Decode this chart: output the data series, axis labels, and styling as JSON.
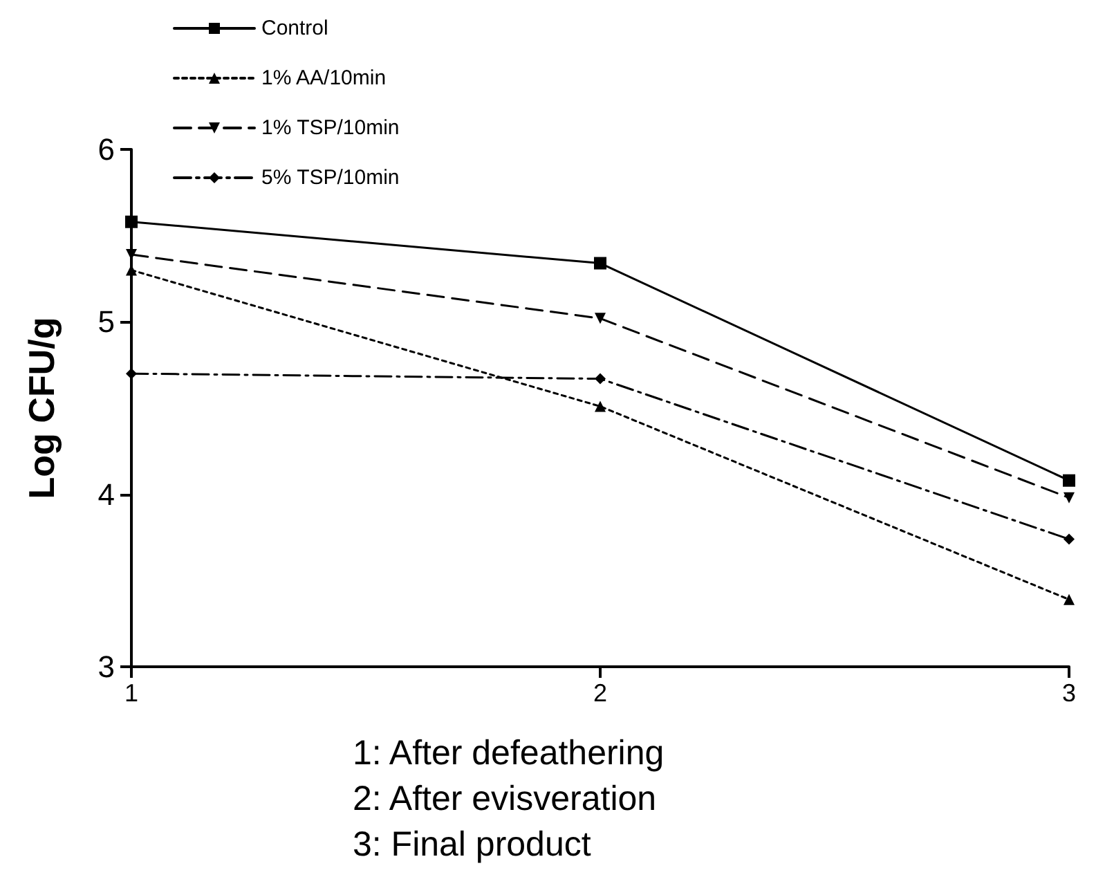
{
  "chart_data": {
    "type": "line",
    "ylabel": "Log CFU/g",
    "x": [
      1,
      2,
      3
    ],
    "xlim": [
      1,
      3
    ],
    "xticks": [
      1,
      2,
      3
    ],
    "ylim": [
      3,
      6
    ],
    "yticks": [
      3,
      4,
      5,
      6
    ],
    "grid": false,
    "legend": "top left",
    "annotations": [
      "1: After defeathering",
      "2: After evisveration",
      "3: Final product"
    ],
    "series": [
      {
        "name": "Control",
        "color": "#000000",
        "marker": "square",
        "line_style": "solid",
        "values": [
          5.58,
          5.34,
          4.08
        ]
      },
      {
        "name": "1% AA/10min",
        "color": "#000000",
        "marker": "triangle",
        "line_style": "dotted",
        "values": [
          5.3,
          4.51,
          3.39
        ]
      },
      {
        "name": "1% TSP/10min",
        "color": "#000000",
        "marker": "triangle-down",
        "line_style": "dashed",
        "values": [
          5.39,
          5.02,
          3.98
        ]
      },
      {
        "name": "5% TSP/10min",
        "color": "#000000",
        "marker": "diamond",
        "line_style": "dashdot",
        "values": [
          4.7,
          4.67,
          3.74
        ]
      }
    ]
  }
}
